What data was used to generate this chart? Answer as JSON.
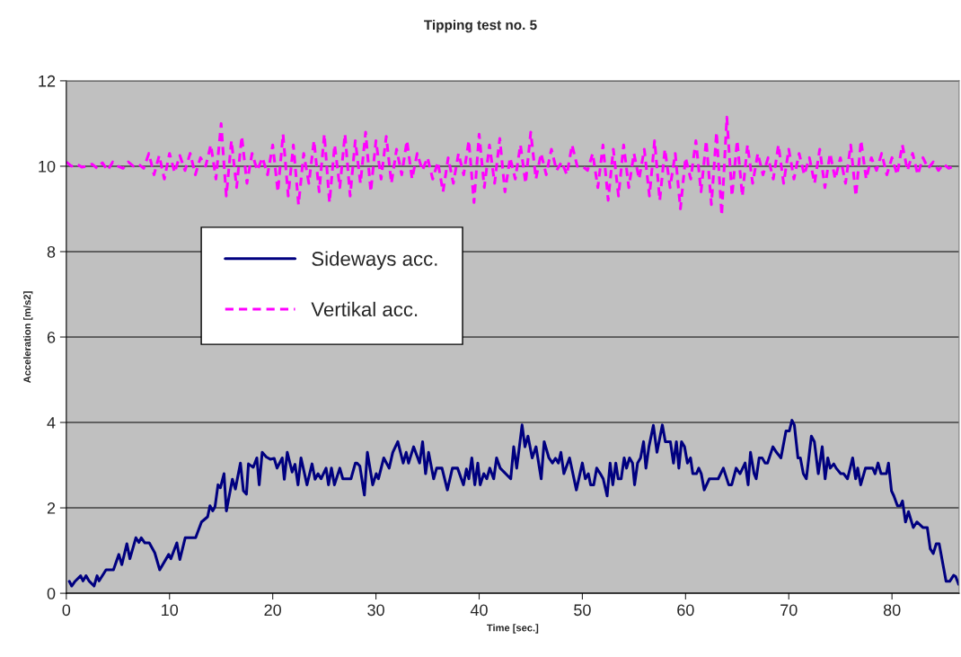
{
  "chart_data": {
    "type": "line",
    "title": "Tipping test no. 5",
    "xlabel": "Time [sec.]",
    "ylabel": "Acceleration [m/s2]",
    "xlim": [
      0,
      86.5
    ],
    "xticks": [
      0,
      10,
      20,
      30,
      40,
      50,
      60,
      70,
      80
    ],
    "ylim": [
      0,
      12
    ],
    "yticks": [
      0,
      2,
      4,
      6,
      8,
      10,
      12
    ],
    "grid": "y",
    "legend": "center left",
    "series": [
      {
        "name": "Sideways acc.",
        "color": "#000080",
        "line_style": "solid",
        "x": [
          0.29,
          0.52,
          0.81,
          1.39,
          1.62,
          1.91,
          2.2,
          2.69,
          2.98,
          3.18,
          3.85,
          4.57,
          5.09,
          5.38,
          5.87,
          6.16,
          6.74,
          7.03,
          7.26,
          7.61,
          8.04,
          8.57,
          9.05,
          9.92,
          10.13,
          10.71,
          11.0,
          11.52,
          12.53,
          13.1,
          13.69,
          13.92,
          14.18,
          14.41,
          14.7,
          14.93,
          15.28,
          15.51,
          16.09,
          16.38,
          16.87,
          17.16,
          17.45,
          17.65,
          18.11,
          18.46,
          18.69,
          18.98,
          19.38,
          19.76,
          20.14,
          20.42,
          20.92,
          21.12,
          21.41,
          21.88,
          22.16,
          22.45,
          22.74,
          23.32,
          23.81,
          24.1,
          24.39,
          24.68,
          25.17,
          25.4,
          25.69,
          25.98,
          26.5,
          26.79,
          27.58,
          28.01,
          28.15,
          28.44,
          28.88,
          29.17,
          29.69,
          30.03,
          30.24,
          30.76,
          31.28,
          31.63,
          32.12,
          32.64,
          32.93,
          33.16,
          33.65,
          34.23,
          34.52,
          34.81,
          35.1,
          35.59,
          35.88,
          36.4,
          36.92,
          37.41,
          37.91,
          38.48,
          38.77,
          39.0,
          39.29,
          39.58,
          39.87,
          40.1,
          40.45,
          40.74,
          41.03,
          41.41,
          41.69,
          42.04,
          43.06,
          43.35,
          43.64,
          44.16,
          44.44,
          44.73,
          45.14,
          45.51,
          46.01,
          46.3,
          46.76,
          47.1,
          47.4,
          47.68,
          47.92,
          48.21,
          48.76,
          49.42,
          50.0,
          50.29,
          50.58,
          50.8,
          51.1,
          51.39,
          51.74,
          52.02,
          52.4,
          52.69,
          52.95,
          53.24,
          53.47,
          53.76,
          54.05,
          54.28,
          54.57,
          54.86,
          55.06,
          55.35,
          55.64,
          55.93,
          56.16,
          56.45,
          56.88,
          57.23,
          57.75,
          58.04,
          58.53,
          58.83,
          59.11,
          59.35,
          59.61,
          59.9,
          60.18,
          60.48,
          60.7,
          61.05,
          61.28,
          61.52,
          61.81,
          62.3,
          63.16,
          63.66,
          64.18,
          64.47,
          64.9,
          65.28,
          65.77,
          66.06,
          66.29,
          66.64,
          66.84,
          67.13,
          67.42,
          67.71,
          67.94,
          68.46,
          68.81,
          69.24,
          69.73,
          70.05,
          70.31,
          70.54,
          70.89,
          71.12,
          71.41,
          71.7,
          72.19,
          72.48,
          72.86,
          73.24,
          73.52,
          73.78,
          74.02,
          74.36,
          74.59,
          75.03,
          75.32,
          75.69,
          76.19,
          76.48,
          76.68,
          76.97,
          77.43,
          78.13,
          78.36,
          78.65,
          78.94,
          79.46,
          79.66,
          79.95,
          80.18,
          80.53,
          80.82,
          81.02,
          81.31,
          81.6,
          82.06,
          82.41,
          82.99,
          83.42,
          83.71,
          84.0,
          84.29,
          84.57,
          85.24,
          85.59,
          85.97,
          86.17,
          86.46
        ],
        "values": [
          0.28,
          0.17,
          0.27,
          0.41,
          0.29,
          0.41,
          0.29,
          0.17,
          0.41,
          0.29,
          0.55,
          0.55,
          0.91,
          0.67,
          1.16,
          0.81,
          1.3,
          1.19,
          1.3,
          1.18,
          1.18,
          0.95,
          0.55,
          0.91,
          0.81,
          1.18,
          0.79,
          1.3,
          1.3,
          1.67,
          1.79,
          2.05,
          1.93,
          2.03,
          2.54,
          2.47,
          2.8,
          1.93,
          2.67,
          2.44,
          3.05,
          2.4,
          2.32,
          3.03,
          2.95,
          3.17,
          2.54,
          3.3,
          3.19,
          3.14,
          3.16,
          2.93,
          3.17,
          2.67,
          3.3,
          2.84,
          3.02,
          2.54,
          3.17,
          2.54,
          3.03,
          2.67,
          2.8,
          2.68,
          2.93,
          2.54,
          2.93,
          2.54,
          2.93,
          2.68,
          2.68,
          3.05,
          3.05,
          2.98,
          2.3,
          3.3,
          2.54,
          2.8,
          2.68,
          3.17,
          2.93,
          3.3,
          3.55,
          3.05,
          3.3,
          3.05,
          3.43,
          3.05,
          3.55,
          2.8,
          3.3,
          2.68,
          2.93,
          2.93,
          2.42,
          2.93,
          2.93,
          2.54,
          2.91,
          2.68,
          3.17,
          2.54,
          3.05,
          2.54,
          2.8,
          2.68,
          2.93,
          2.68,
          3.17,
          2.93,
          2.68,
          3.43,
          2.93,
          3.94,
          3.43,
          3.68,
          3.17,
          3.43,
          2.68,
          3.55,
          3.17,
          3.05,
          3.16,
          3.05,
          3.3,
          2.8,
          3.17,
          2.42,
          3.05,
          2.68,
          2.8,
          2.54,
          2.54,
          2.93,
          2.8,
          2.68,
          2.28,
          3.05,
          2.54,
          3.05,
          2.68,
          2.68,
          3.17,
          2.93,
          3.17,
          3.05,
          2.54,
          3.05,
          3.17,
          3.55,
          2.93,
          3.43,
          3.93,
          3.3,
          3.94,
          3.55,
          3.55,
          3.05,
          3.55,
          2.93,
          3.55,
          3.43,
          3.05,
          3.17,
          2.8,
          2.8,
          2.93,
          2.8,
          2.42,
          2.68,
          2.68,
          2.93,
          2.54,
          2.54,
          2.93,
          2.8,
          3.05,
          2.54,
          3.3,
          2.8,
          2.68,
          3.17,
          3.17,
          3.05,
          3.05,
          3.43,
          3.3,
          3.17,
          3.8,
          3.8,
          4.05,
          3.94,
          3.17,
          3.17,
          2.8,
          2.68,
          3.68,
          3.55,
          2.8,
          3.43,
          2.68,
          3.17,
          2.93,
          3.03,
          2.93,
          2.8,
          2.8,
          2.68,
          3.17,
          2.68,
          2.93,
          2.54,
          2.93,
          2.93,
          2.8,
          3.05,
          2.8,
          2.8,
          3.05,
          2.4,
          2.28,
          2.05,
          2.05,
          2.16,
          1.67,
          1.91,
          1.54,
          1.67,
          1.54,
          1.54,
          1.04,
          0.93,
          1.16,
          1.16,
          0.28,
          0.28,
          0.42,
          0.39,
          0.21
        ]
      },
      {
        "name": "Vertikal acc.",
        "color": "#ff00ff",
        "line_style": "dashed",
        "x": [
          0,
          0.5,
          1,
          1.5,
          2,
          2.5,
          3,
          3.5,
          4,
          4.5,
          5,
          5.5,
          6,
          6.5,
          7,
          7.5,
          8,
          8.5,
          9,
          9.5,
          10,
          10.5,
          11,
          11.5,
          12,
          12.5,
          13,
          13.5,
          14,
          14.5,
          15,
          15.5,
          16,
          16.5,
          17,
          17.5,
          18,
          18.5,
          19,
          19.5,
          20,
          20.5,
          21,
          21.5,
          22,
          22.5,
          23,
          23.5,
          24,
          24.5,
          25,
          25.5,
          26,
          26.5,
          27,
          27.5,
          28,
          28.5,
          29,
          29.5,
          30,
          30.5,
          31,
          31.5,
          32,
          32.5,
          33,
          33.5,
          34,
          34.5,
          35,
          35.5,
          36,
          36.5,
          37,
          37.5,
          38,
          38.5,
          39,
          39.5,
          40,
          40.5,
          41,
          41.5,
          42,
          42.5,
          43,
          43.5,
          44,
          44.5,
          45,
          45.5,
          46,
          46.5,
          47,
          47.5,
          48,
          48.5,
          49,
          49.5,
          50,
          50.5,
          51,
          51.5,
          52,
          52.5,
          53,
          53.5,
          54,
          54.5,
          55,
          55.5,
          56,
          56.5,
          57,
          57.5,
          58,
          58.5,
          59,
          59.5,
          60,
          60.5,
          61,
          61.5,
          62,
          62.5,
          63,
          63.5,
          64,
          64.5,
          65,
          65.5,
          66,
          66.5,
          67,
          67.5,
          68,
          68.5,
          69,
          69.5,
          70,
          70.5,
          71,
          71.5,
          72,
          72.5,
          73,
          73.5,
          74,
          74.5,
          75,
          75.5,
          76,
          76.5,
          77,
          77.5,
          78,
          78.5,
          79,
          79.5,
          80,
          80.5,
          81,
          81.5,
          82,
          82.5,
          83,
          83.5,
          84,
          84.5,
          85,
          85.5,
          86
        ],
        "values": [
          10.1,
          10.0,
          10.05,
          9.98,
          10.0,
          10.05,
          9.95,
          10.08,
          9.9,
          10.1,
          10.0,
          9.95,
          10.1,
          10.0,
          10.05,
          9.95,
          10.3,
          9.8,
          10.25,
          9.7,
          10.3,
          9.85,
          10.25,
          9.9,
          10.3,
          9.8,
          10.2,
          10.0,
          10.5,
          9.7,
          11.0,
          9.3,
          10.6,
          9.5,
          10.7,
          9.6,
          10.3,
          9.9,
          10.2,
          9.8,
          10.5,
          9.4,
          10.75,
          9.3,
          10.5,
          9.1,
          10.3,
          9.6,
          10.6,
          9.4,
          10.75,
          9.15,
          10.5,
          9.5,
          10.75,
          9.3,
          10.6,
          9.6,
          10.8,
          9.4,
          10.6,
          9.7,
          10.7,
          9.6,
          10.4,
          9.8,
          10.6,
          9.7,
          10.3,
          9.9,
          10.2,
          9.7,
          10.1,
          9.4,
          10.2,
          9.6,
          10.3,
          9.8,
          10.6,
          9.15,
          10.75,
          9.5,
          10.5,
          9.6,
          10.65,
          9.4,
          10.2,
          9.7,
          10.5,
          9.6,
          10.8,
          9.7,
          10.3,
          9.8,
          10.4,
          9.9,
          10.1,
          9.8,
          10.5,
          10.0,
          10.0,
          9.9,
          10.3,
          9.5,
          10.5,
          9.2,
          10.4,
          9.3,
          10.5,
          9.5,
          10.3,
          9.7,
          10.4,
          9.3,
          10.6,
          9.2,
          10.4,
          9.5,
          10.3,
          9.0,
          10.2,
          9.7,
          10.6,
          9.4,
          10.6,
          9.1,
          10.8,
          8.85,
          11.15,
          9.3,
          10.6,
          9.3,
          10.5,
          9.6,
          10.3,
          9.8,
          10.2,
          9.7,
          10.5,
          9.6,
          10.4,
          9.7,
          10.3,
          9.8,
          10.2,
          9.6,
          10.4,
          9.5,
          10.3,
          9.7,
          10.2,
          9.6,
          10.5,
          9.3,
          10.6,
          9.7,
          10.2,
          9.9,
          10.3,
          9.8,
          10.2,
          9.8,
          10.5,
          9.9,
          10.3,
          9.8,
          10.2,
          9.95,
          10.1,
          9.9,
          10.05,
          9.95,
          10.0
        ]
      }
    ]
  }
}
